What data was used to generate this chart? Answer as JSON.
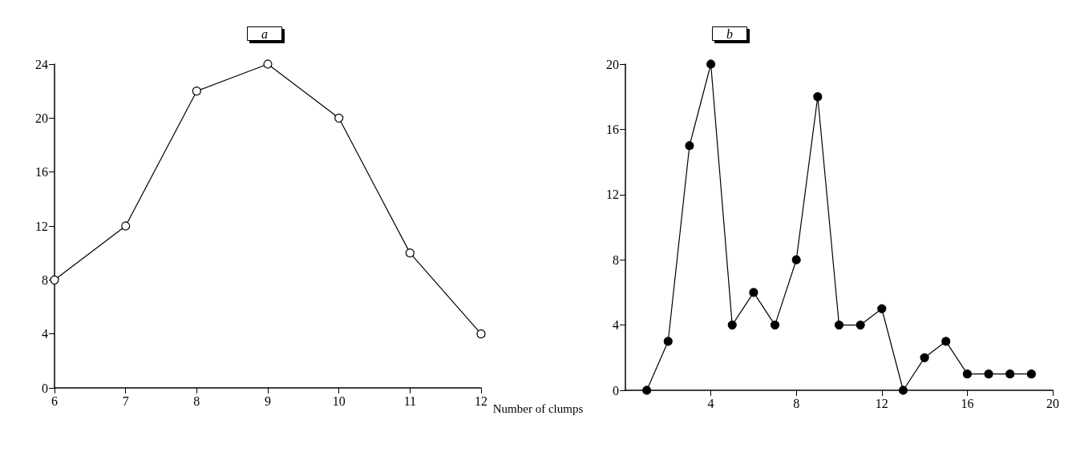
{
  "chart_data": [
    {
      "type": "line",
      "title": "a",
      "xlabel": "Number of clumps",
      "x": [
        6,
        7,
        8,
        9,
        10,
        11,
        12
      ],
      "series": [
        {
          "color": "#000000",
          "values": [
            8,
            12,
            22,
            24,
            20,
            10,
            4
          ]
        }
      ],
      "xlim": [
        6,
        12
      ],
      "xticks": [
        6,
        7,
        8,
        9,
        10,
        11,
        12
      ],
      "ylim": [
        0,
        24
      ],
      "yticks": [
        0,
        4,
        8,
        12,
        16,
        20,
        24
      ],
      "marker": "circle",
      "grid": false
    },
    {
      "type": "line",
      "title": "b",
      "x": [
        1,
        2,
        3,
        4,
        5,
        6,
        7,
        8,
        9,
        10,
        11,
        12,
        13,
        14,
        15,
        16,
        17,
        18,
        19
      ],
      "series": [
        {
          "color": "#000000",
          "values": [
            0,
            3,
            15,
            20,
            4,
            6,
            4,
            8,
            18,
            4,
            4,
            5,
            0,
            2,
            3,
            1,
            1,
            1,
            1
          ]
        }
      ],
      "xlim": [
        0,
        20
      ],
      "xticks": [
        4,
        8,
        12,
        16,
        20
      ],
      "ylim": [
        0,
        20
      ],
      "yticks": [
        0,
        4,
        8,
        12,
        16,
        20
      ],
      "marker": "circle",
      "grid": false
    }
  ]
}
